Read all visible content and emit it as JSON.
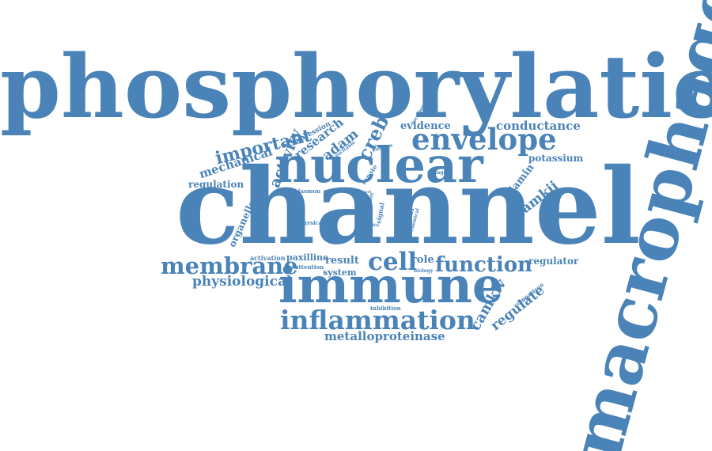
{
  "palette": {
    "word_color": "#4a83b8",
    "background": "#ffffff"
  },
  "words": {
    "phosphorylation": "phosphorylation",
    "channel": "channel",
    "macrophage": "macrophage",
    "nuclear": "nuclear",
    "immune": "immune",
    "envelope": "envelope",
    "inflammation": "inflammation",
    "membrane": "membrane",
    "function": "function",
    "cell": "cell",
    "important": "important",
    "physiological": "physiological",
    "mechanical": "mechanical",
    "metalloproteinase": "metalloproteinase",
    "conductance": "conductance",
    "evidence": "evidence",
    "activity": "activity",
    "research": "research",
    "adam": "adam",
    "creb": "creb",
    "camkii": "camkii",
    "camkiv": "camkiv",
    "regulate": "regulate",
    "regulation": "regulation",
    "regulator": "regulator",
    "potassium": "potassium",
    "lamin": "lamin",
    "organelle": "organelle",
    "result": "result",
    "role": "role",
    "paxilline": "paxilline",
    "system": "system",
    "attention": "attention",
    "activation": "activation",
    "biology": "biology",
    "expression": "expression",
    "excitable": "excitable",
    "location": "location",
    "calcium": "calcium",
    "innate": "innate",
    "voltage": "voltage",
    "plasmon": "plasmon",
    "report": "report",
    "time": "time",
    "novel": "novel",
    "physical": "physical",
    "inhibition_v": "inhibition",
    "signal": "signal",
    "ability": "ability",
    "cellular": "cellular",
    "chemical": "chemical",
    "comparison": "comparison",
    "inhibition": "inhibition"
  }
}
